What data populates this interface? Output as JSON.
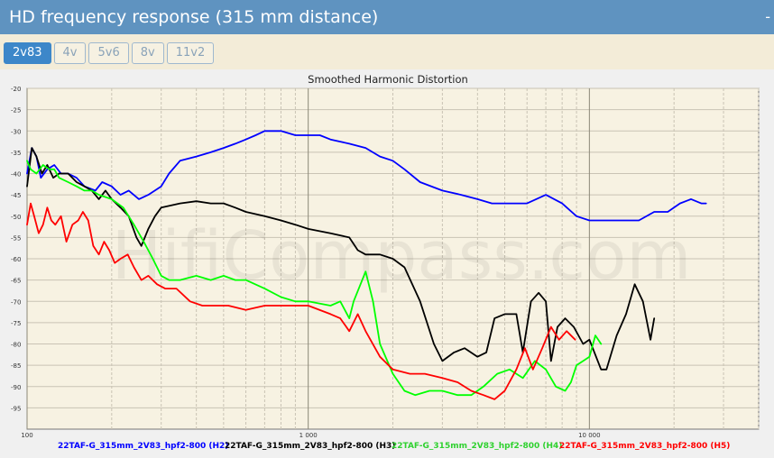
{
  "header": {
    "title": "HD frequency response (315 mm distance)",
    "collapse_label": "-"
  },
  "tabs": [
    {
      "label": "2v83",
      "active": true
    },
    {
      "label": "4v",
      "active": false
    },
    {
      "label": "5v6",
      "active": false
    },
    {
      "label": "8v",
      "active": false
    },
    {
      "label": "11v2",
      "active": false
    }
  ],
  "watermark": "HifiCompass.com",
  "chart_data": {
    "type": "line",
    "title": "Smoothed Harmonic Distortion",
    "xscale": "log",
    "xlim": [
      100,
      40000
    ],
    "ylim": [
      -100,
      -20
    ],
    "xticks": [
      {
        "value": 100,
        "label": "100"
      },
      {
        "value": 1000,
        "label": "1 000"
      },
      {
        "value": 10000,
        "label": "10 000"
      }
    ],
    "yticks": [
      -20,
      -25,
      -30,
      -35,
      -40,
      -45,
      -50,
      -55,
      -60,
      -65,
      -70,
      -75,
      -80,
      -85,
      -90,
      -95
    ],
    "grid": true,
    "legend_position": "bottom",
    "series": [
      {
        "name": "22TAF-G_315mm_2V83_hpf2-800 (H2)",
        "color": "#0000ff",
        "points": [
          [
            100,
            -40
          ],
          [
            104,
            -34
          ],
          [
            108,
            -36
          ],
          [
            112,
            -41
          ],
          [
            118,
            -39
          ],
          [
            125,
            -38
          ],
          [
            132,
            -40
          ],
          [
            140,
            -40
          ],
          [
            150,
            -41
          ],
          [
            160,
            -43
          ],
          [
            175,
            -44
          ],
          [
            185,
            -42
          ],
          [
            200,
            -43
          ],
          [
            215,
            -45
          ],
          [
            230,
            -44
          ],
          [
            250,
            -46
          ],
          [
            270,
            -45
          ],
          [
            300,
            -43
          ],
          [
            320,
            -40
          ],
          [
            350,
            -37
          ],
          [
            400,
            -36
          ],
          [
            450,
            -35
          ],
          [
            500,
            -34
          ],
          [
            550,
            -33
          ],
          [
            600,
            -32
          ],
          [
            650,
            -31
          ],
          [
            700,
            -30
          ],
          [
            750,
            -30
          ],
          [
            800,
            -30
          ],
          [
            900,
            -31
          ],
          [
            1000,
            -31
          ],
          [
            1100,
            -31
          ],
          [
            1200,
            -32
          ],
          [
            1400,
            -33
          ],
          [
            1600,
            -34
          ],
          [
            1800,
            -36
          ],
          [
            2000,
            -37
          ],
          [
            2200,
            -39
          ],
          [
            2500,
            -42
          ],
          [
            3000,
            -44
          ],
          [
            3500,
            -45
          ],
          [
            4000,
            -46
          ],
          [
            4500,
            -47
          ],
          [
            5000,
            -47
          ],
          [
            6000,
            -47
          ],
          [
            7000,
            -45
          ],
          [
            8000,
            -47
          ],
          [
            9000,
            -50
          ],
          [
            10000,
            -51
          ],
          [
            12000,
            -51
          ],
          [
            14000,
            -51
          ],
          [
            15000,
            -51
          ],
          [
            17000,
            -49
          ],
          [
            19000,
            -49
          ],
          [
            21000,
            -47
          ],
          [
            23000,
            -46
          ],
          [
            25000,
            -47
          ],
          [
            26000,
            -47
          ]
        ]
      },
      {
        "name": "22TAF-G_315mm_2V83_hpf2-800 (H3)",
        "color": "#000000",
        "points": [
          [
            100,
            -43
          ],
          [
            104,
            -34
          ],
          [
            108,
            -36
          ],
          [
            113,
            -40
          ],
          [
            118,
            -38
          ],
          [
            124,
            -41
          ],
          [
            130,
            -40
          ],
          [
            140,
            -40
          ],
          [
            150,
            -42
          ],
          [
            160,
            -43
          ],
          [
            170,
            -44
          ],
          [
            180,
            -46
          ],
          [
            190,
            -44
          ],
          [
            200,
            -46
          ],
          [
            215,
            -48
          ],
          [
            230,
            -50
          ],
          [
            245,
            -55
          ],
          [
            255,
            -57
          ],
          [
            270,
            -53
          ],
          [
            285,
            -50
          ],
          [
            300,
            -48
          ],
          [
            350,
            -47
          ],
          [
            400,
            -46.5
          ],
          [
            450,
            -47
          ],
          [
            500,
            -47
          ],
          [
            550,
            -48
          ],
          [
            600,
            -49
          ],
          [
            700,
            -50
          ],
          [
            800,
            -51
          ],
          [
            900,
            -52
          ],
          [
            1000,
            -53
          ],
          [
            1200,
            -54
          ],
          [
            1400,
            -55
          ],
          [
            1500,
            -58
          ],
          [
            1600,
            -59
          ],
          [
            1800,
            -59
          ],
          [
            2000,
            -60
          ],
          [
            2200,
            -62
          ],
          [
            2500,
            -70
          ],
          [
            2800,
            -80
          ],
          [
            3000,
            -84
          ],
          [
            3300,
            -82
          ],
          [
            3600,
            -81
          ],
          [
            4000,
            -83
          ],
          [
            4300,
            -82
          ],
          [
            4600,
            -74
          ],
          [
            5000,
            -73
          ],
          [
            5500,
            -73
          ],
          [
            5800,
            -82
          ],
          [
            6200,
            -70
          ],
          [
            6600,
            -68
          ],
          [
            7000,
            -70
          ],
          [
            7300,
            -84
          ],
          [
            7700,
            -76
          ],
          [
            8200,
            -74
          ],
          [
            8800,
            -76
          ],
          [
            9500,
            -80
          ],
          [
            10000,
            -79
          ],
          [
            11000,
            -86
          ],
          [
            11500,
            -86
          ],
          [
            12500,
            -78
          ],
          [
            13500,
            -73
          ],
          [
            14500,
            -66
          ],
          [
            15500,
            -70
          ],
          [
            16500,
            -79
          ],
          [
            17000,
            -74
          ]
        ]
      },
      {
        "name": "22TAF-G_315mm_2V83_hpf2-800 (H4)",
        "color": "#00ff00",
        "points": [
          [
            100,
            -37
          ],
          [
            103,
            -39
          ],
          [
            108,
            -40
          ],
          [
            114,
            -38
          ],
          [
            120,
            -39
          ],
          [
            125,
            -39
          ],
          [
            130,
            -41
          ],
          [
            140,
            -42
          ],
          [
            150,
            -43
          ],
          [
            160,
            -44
          ],
          [
            170,
            -44
          ],
          [
            180,
            -45
          ],
          [
            200,
            -46
          ],
          [
            220,
            -48
          ],
          [
            240,
            -52
          ],
          [
            260,
            -56
          ],
          [
            280,
            -60
          ],
          [
            300,
            -64
          ],
          [
            320,
            -65
          ],
          [
            350,
            -65
          ],
          [
            400,
            -64
          ],
          [
            450,
            -65
          ],
          [
            500,
            -64
          ],
          [
            550,
            -65
          ],
          [
            600,
            -65
          ],
          [
            700,
            -67
          ],
          [
            800,
            -69
          ],
          [
            900,
            -70
          ],
          [
            1000,
            -70
          ],
          [
            1200,
            -71
          ],
          [
            1300,
            -70
          ],
          [
            1400,
            -74
          ],
          [
            1450,
            -70
          ],
          [
            1600,
            -63
          ],
          [
            1700,
            -70
          ],
          [
            1800,
            -80
          ],
          [
            2000,
            -87
          ],
          [
            2200,
            -91
          ],
          [
            2400,
            -92
          ],
          [
            2700,
            -91
          ],
          [
            3000,
            -91
          ],
          [
            3400,
            -92
          ],
          [
            3800,
            -92
          ],
          [
            4200,
            -90
          ],
          [
            4700,
            -87
          ],
          [
            5200,
            -86
          ],
          [
            5800,
            -88
          ],
          [
            6400,
            -84
          ],
          [
            7000,
            -86
          ],
          [
            7600,
            -90
          ],
          [
            8200,
            -91
          ],
          [
            8600,
            -89
          ],
          [
            9000,
            -85
          ],
          [
            9500,
            -84
          ],
          [
            10000,
            -83
          ],
          [
            10500,
            -78
          ],
          [
            11000,
            -80
          ]
        ]
      },
      {
        "name": "22TAF-G_315mm_2V83_hpf2-800 (H5)",
        "color": "#ff0000",
        "points": [
          [
            100,
            -52
          ],
          [
            103,
            -47
          ],
          [
            106,
            -50
          ],
          [
            110,
            -54
          ],
          [
            114,
            -52
          ],
          [
            118,
            -48
          ],
          [
            122,
            -51
          ],
          [
            126,
            -52
          ],
          [
            132,
            -50
          ],
          [
            138,
            -56
          ],
          [
            145,
            -52
          ],
          [
            152,
            -51
          ],
          [
            158,
            -49
          ],
          [
            165,
            -51
          ],
          [
            172,
            -57
          ],
          [
            180,
            -59
          ],
          [
            188,
            -56
          ],
          [
            196,
            -58
          ],
          [
            205,
            -61
          ],
          [
            215,
            -60
          ],
          [
            228,
            -59
          ],
          [
            240,
            -62
          ],
          [
            255,
            -65
          ],
          [
            270,
            -64
          ],
          [
            290,
            -66
          ],
          [
            310,
            -67
          ],
          [
            340,
            -67
          ],
          [
            380,
            -70
          ],
          [
            420,
            -71
          ],
          [
            470,
            -71
          ],
          [
            520,
            -71
          ],
          [
            600,
            -72
          ],
          [
            700,
            -71
          ],
          [
            800,
            -71
          ],
          [
            900,
            -71
          ],
          [
            1000,
            -71
          ],
          [
            1200,
            -73
          ],
          [
            1300,
            -74
          ],
          [
            1400,
            -77
          ],
          [
            1500,
            -73
          ],
          [
            1600,
            -77
          ],
          [
            1800,
            -83
          ],
          [
            2000,
            -86
          ],
          [
            2300,
            -87
          ],
          [
            2600,
            -87
          ],
          [
            3000,
            -88
          ],
          [
            3400,
            -89
          ],
          [
            3800,
            -91
          ],
          [
            4200,
            -92
          ],
          [
            4600,
            -93
          ],
          [
            5000,
            -91
          ],
          [
            5500,
            -86
          ],
          [
            5900,
            -81
          ],
          [
            6300,
            -86
          ],
          [
            6800,
            -81
          ],
          [
            7300,
            -76
          ],
          [
            7800,
            -79
          ],
          [
            8300,
            -77
          ],
          [
            8900,
            -79
          ]
        ]
      }
    ]
  }
}
